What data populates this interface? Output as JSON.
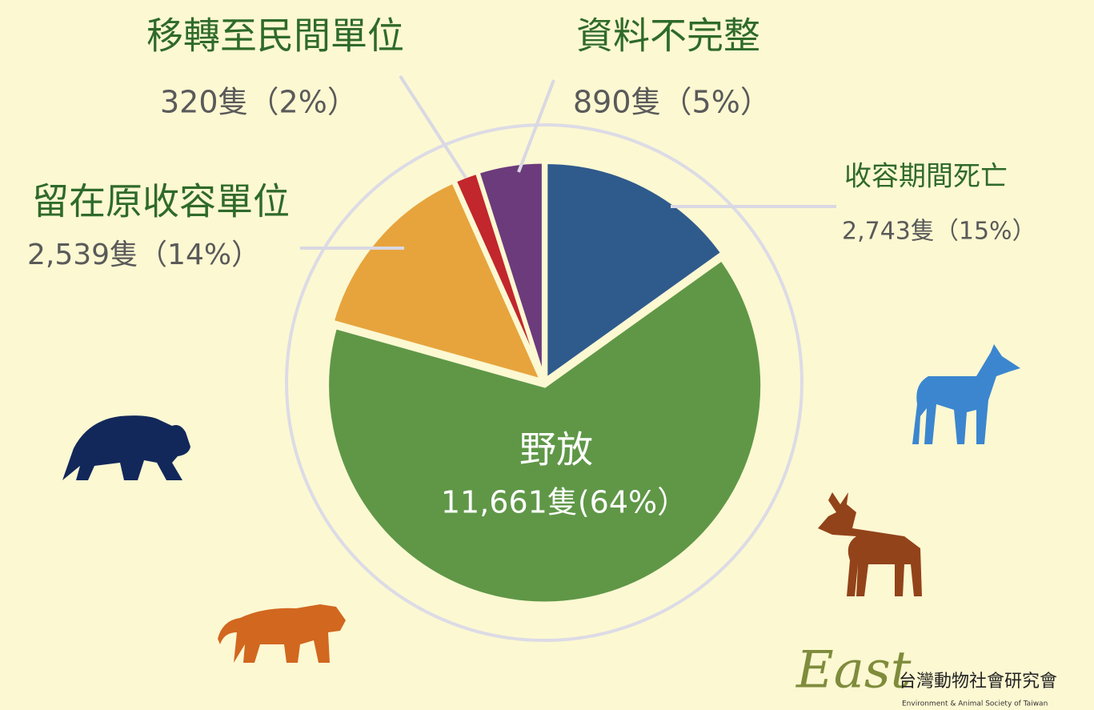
{
  "chart_data": {
    "type": "pie",
    "categories": [
      "收容期間死亡",
      "野放",
      "留在原收容單位",
      "移轉至民間單位",
      "資料不完整"
    ],
    "values": [
      2743,
      11661,
      2539,
      320,
      890
    ],
    "value_labels": [
      "2,743隻（15%）",
      "11,661隻(64%）",
      "2,539隻（14%）",
      "320隻（2%）",
      "890隻（5%）"
    ],
    "colors": [
      "#2f5a8c",
      "#5f9747",
      "#e7a43d",
      "#c1272d",
      "#6c3b7b"
    ]
  },
  "logo": {
    "mark": "East",
    "name": "台灣動物社會研究會",
    "subtitle": "Environment & Animal Society of Taiwan"
  }
}
